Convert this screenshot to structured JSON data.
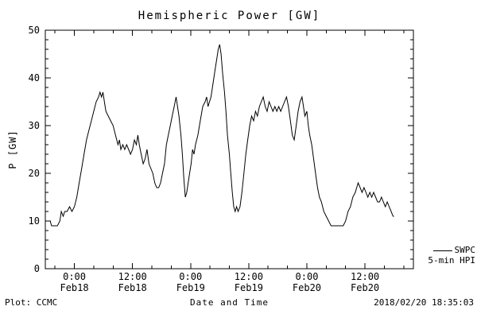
{
  "title": "Hemispheric Power [GW]",
  "footer": {
    "left": "Plot: CCMC",
    "right": "2018/02/20 18:35:03"
  },
  "legend": {
    "line1": "SWPC",
    "line2": "5-min HPI"
  },
  "colors": {
    "line": "#000000",
    "background": "#ffffff"
  },
  "chart_data": {
    "type": "line",
    "title": "Hemispheric Power [GW]",
    "xlabel": "Date and Time",
    "ylabel": "P [GW]",
    "ylim": [
      0,
      50
    ],
    "xlim_hours": [
      -6,
      70
    ],
    "x_reference": "hours relative to 2018-02-18 00:00 UT",
    "grid": false,
    "legend_position": "right-outside",
    "y_ticks": [
      0,
      10,
      20,
      30,
      40,
      50
    ],
    "x_ticks": [
      {
        "hour": 0,
        "time": "0:00",
        "date": "Feb18"
      },
      {
        "hour": 12,
        "time": "12:00",
        "date": "Feb18"
      },
      {
        "hour": 24,
        "time": "0:00",
        "date": "Feb19"
      },
      {
        "hour": 36,
        "time": "12:00",
        "date": "Feb19"
      },
      {
        "hour": 48,
        "time": "0:00",
        "date": "Feb20"
      },
      {
        "hour": 60,
        "time": "12:00",
        "date": "Feb20"
      }
    ],
    "series": [
      {
        "name": "SWPC 5-min HPI",
        "points": [
          [
            -5,
            10
          ],
          [
            -4.7,
            9
          ],
          [
            -4,
            9
          ],
          [
            -3.5,
            9
          ],
          [
            -3,
            10
          ],
          [
            -2.7,
            12
          ],
          [
            -2.3,
            11
          ],
          [
            -2,
            12
          ],
          [
            -1.5,
            12
          ],
          [
            -1,
            13
          ],
          [
            -0.5,
            12
          ],
          [
            0,
            13
          ],
          [
            0.5,
            15
          ],
          [
            1,
            18
          ],
          [
            1.5,
            21
          ],
          [
            2,
            24
          ],
          [
            2.5,
            27
          ],
          [
            3,
            29
          ],
          [
            3.5,
            31
          ],
          [
            4,
            33
          ],
          [
            4.5,
            35
          ],
          [
            5,
            36
          ],
          [
            5.3,
            37
          ],
          [
            5.6,
            36
          ],
          [
            5.9,
            37
          ],
          [
            6.2,
            35
          ],
          [
            6.5,
            33
          ],
          [
            7,
            32
          ],
          [
            7.5,
            31
          ],
          [
            8,
            30
          ],
          [
            8.5,
            28
          ],
          [
            9,
            26
          ],
          [
            9.3,
            27
          ],
          [
            9.6,
            25
          ],
          [
            10,
            26
          ],
          [
            10.4,
            25
          ],
          [
            10.8,
            26
          ],
          [
            11.2,
            25
          ],
          [
            11.6,
            24
          ],
          [
            12,
            25
          ],
          [
            12.4,
            27
          ],
          [
            12.8,
            26
          ],
          [
            13.1,
            28
          ],
          [
            13.4,
            26
          ],
          [
            13.8,
            24
          ],
          [
            14.2,
            22
          ],
          [
            14.6,
            23
          ],
          [
            15,
            25
          ],
          [
            15.4,
            22
          ],
          [
            15.8,
            21
          ],
          [
            16.2,
            20
          ],
          [
            16.6,
            18
          ],
          [
            17,
            17
          ],
          [
            17.4,
            17
          ],
          [
            17.8,
            18
          ],
          [
            18.2,
            20
          ],
          [
            18.6,
            22
          ],
          [
            19,
            26
          ],
          [
            19.4,
            28
          ],
          [
            19.8,
            30
          ],
          [
            20.2,
            32
          ],
          [
            20.6,
            34
          ],
          [
            21,
            36
          ],
          [
            21.3,
            34
          ],
          [
            21.6,
            32
          ],
          [
            22,
            28
          ],
          [
            22.3,
            24
          ],
          [
            22.6,
            19
          ],
          [
            22.9,
            15
          ],
          [
            23.2,
            16
          ],
          [
            23.5,
            18
          ],
          [
            23.8,
            20
          ],
          [
            24.1,
            22
          ],
          [
            24.4,
            25
          ],
          [
            24.7,
            24
          ],
          [
            25,
            26
          ],
          [
            25.5,
            28
          ],
          [
            26,
            31
          ],
          [
            26.5,
            34
          ],
          [
            27,
            35
          ],
          [
            27.3,
            36
          ],
          [
            27.6,
            34
          ],
          [
            27.9,
            35
          ],
          [
            28.2,
            36
          ],
          [
            28.5,
            38
          ],
          [
            28.8,
            40
          ],
          [
            29.1,
            42
          ],
          [
            29.4,
            44
          ],
          [
            29.7,
            46
          ],
          [
            30,
            47
          ],
          [
            30.3,
            45
          ],
          [
            30.6,
            41
          ],
          [
            31,
            37
          ],
          [
            31.3,
            33
          ],
          [
            31.6,
            28
          ],
          [
            32,
            24
          ],
          [
            32.3,
            20
          ],
          [
            32.6,
            16
          ],
          [
            32.9,
            13
          ],
          [
            33.2,
            12
          ],
          [
            33.5,
            13
          ],
          [
            33.8,
            12
          ],
          [
            34.2,
            13
          ],
          [
            34.6,
            16
          ],
          [
            35,
            20
          ],
          [
            35.4,
            24
          ],
          [
            35.8,
            27
          ],
          [
            36.2,
            30
          ],
          [
            36.6,
            32
          ],
          [
            37,
            31
          ],
          [
            37.4,
            33
          ],
          [
            37.8,
            32
          ],
          [
            38.2,
            34
          ],
          [
            38.6,
            35
          ],
          [
            39,
            36
          ],
          [
            39.4,
            34
          ],
          [
            39.8,
            33
          ],
          [
            40.2,
            35
          ],
          [
            40.6,
            34
          ],
          [
            41,
            33
          ],
          [
            41.4,
            34
          ],
          [
            41.8,
            33
          ],
          [
            42.2,
            34
          ],
          [
            42.6,
            33
          ],
          [
            43,
            34
          ],
          [
            43.4,
            35
          ],
          [
            43.8,
            36
          ],
          [
            44.2,
            34
          ],
          [
            44.6,
            31
          ],
          [
            45,
            28
          ],
          [
            45.4,
            27
          ],
          [
            45.8,
            30
          ],
          [
            46.2,
            33
          ],
          [
            46.6,
            35
          ],
          [
            47,
            36
          ],
          [
            47.3,
            34
          ],
          [
            47.6,
            32
          ],
          [
            48,
            33
          ],
          [
            48.3,
            30
          ],
          [
            48.6,
            28
          ],
          [
            49,
            26
          ],
          [
            49.4,
            23
          ],
          [
            49.8,
            20
          ],
          [
            50.2,
            17
          ],
          [
            50.6,
            15
          ],
          [
            51,
            14
          ],
          [
            51.5,
            12
          ],
          [
            52,
            11
          ],
          [
            52.5,
            10
          ],
          [
            53,
            9
          ],
          [
            53.5,
            9
          ],
          [
            54,
            9
          ],
          [
            54.5,
            9
          ],
          [
            55,
            9
          ],
          [
            55.5,
            9
          ],
          [
            56,
            10
          ],
          [
            56.5,
            12
          ],
          [
            57,
            13
          ],
          [
            57.5,
            15
          ],
          [
            58,
            16
          ],
          [
            58.3,
            17
          ],
          [
            58.6,
            18
          ],
          [
            59,
            17
          ],
          [
            59.4,
            16
          ],
          [
            59.8,
            17
          ],
          [
            60.2,
            16
          ],
          [
            60.6,
            15
          ],
          [
            61,
            16
          ],
          [
            61.4,
            15
          ],
          [
            61.8,
            16
          ],
          [
            62.2,
            15
          ],
          [
            62.6,
            14
          ],
          [
            63,
            14
          ],
          [
            63.4,
            15
          ],
          [
            63.8,
            14
          ],
          [
            64.2,
            13
          ],
          [
            64.6,
            14
          ],
          [
            65,
            13
          ],
          [
            65.4,
            12
          ],
          [
            65.8,
            11
          ],
          [
            66,
            11
          ]
        ]
      }
    ]
  }
}
